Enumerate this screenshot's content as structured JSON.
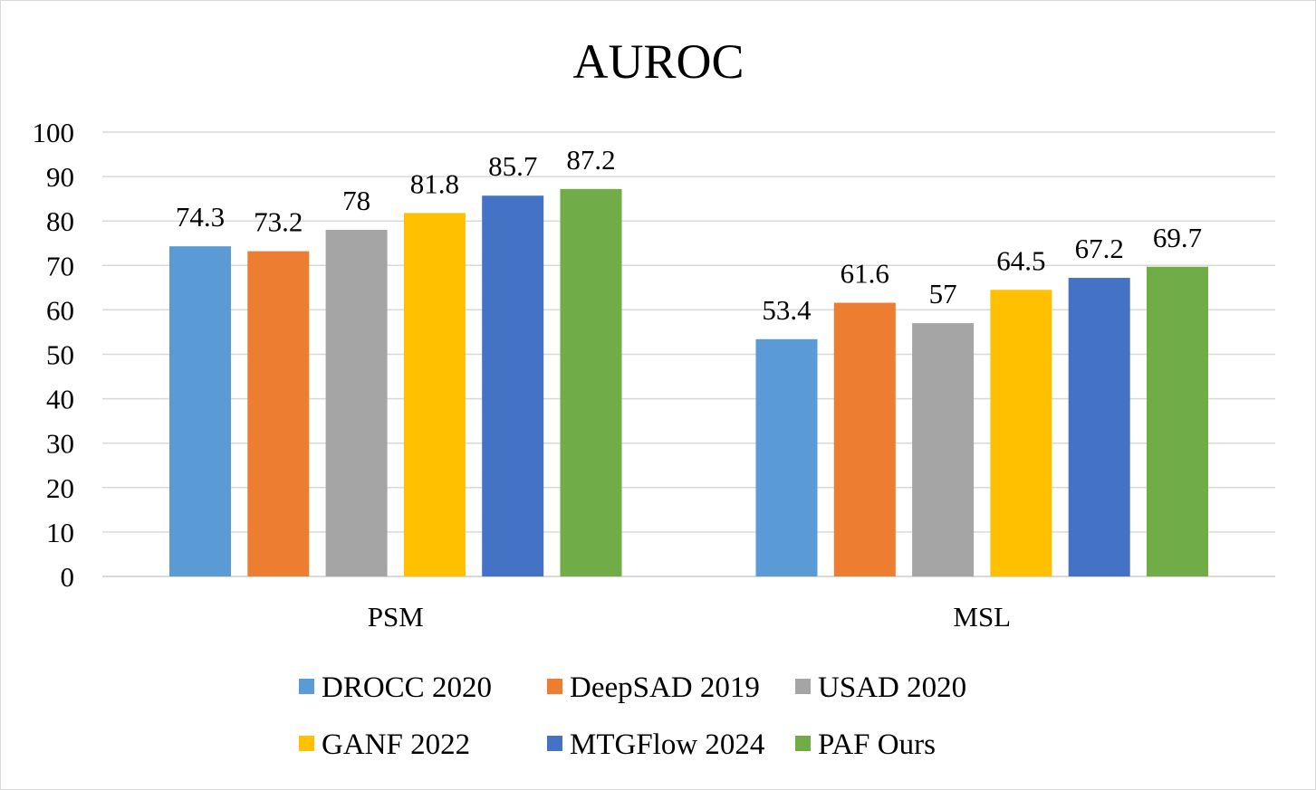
{
  "chart_data": {
    "type": "bar",
    "title": "AUROC",
    "xlabel": "",
    "ylabel": "",
    "categories": [
      "PSM",
      "MSL"
    ],
    "ylim": [
      0,
      100
    ],
    "yticks": [
      0,
      10,
      20,
      30,
      40,
      50,
      60,
      70,
      80,
      90,
      100
    ],
    "grid": true,
    "legend_position": "bottom",
    "series": [
      {
        "name": "DROCC 2020",
        "color": "#5b9bd5",
        "values": [
          74.3,
          53.4
        ],
        "labels": [
          "74.3",
          "53.4"
        ]
      },
      {
        "name": "DeepSAD 2019",
        "color": "#ed7d31",
        "values": [
          73.2,
          61.6
        ],
        "labels": [
          "73.2",
          "61.6"
        ]
      },
      {
        "name": "USAD 2020",
        "color": "#a5a5a5",
        "values": [
          78,
          57
        ],
        "labels": [
          "78",
          "57"
        ]
      },
      {
        "name": "GANF 2022",
        "color": "#ffc000",
        "values": [
          81.8,
          64.5
        ],
        "labels": [
          "81.8",
          "64.5"
        ]
      },
      {
        "name": "MTGFlow 2024",
        "color": "#4472c4",
        "values": [
          85.7,
          67.2
        ],
        "labels": [
          "85.7",
          "67.2"
        ]
      },
      {
        "name": "PAF Ours",
        "color": "#70ad47",
        "values": [
          87.2,
          69.7
        ],
        "labels": [
          "87.2",
          "69.7"
        ]
      }
    ]
  }
}
